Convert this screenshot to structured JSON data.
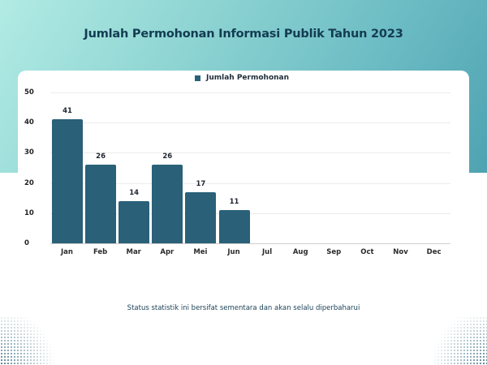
{
  "page": {
    "title": "Jumlah Permohonan Informasi Publik Tahun 2023",
    "footnote": "Status statistik ini bersifat sementara dan akan selalu diperbaharui",
    "colors": {
      "bar": "#2a6078",
      "title": "#133c52",
      "gradient_start": "#b2ebe4",
      "gradient_end": "#4fa3b1"
    }
  },
  "chart_data": {
    "type": "bar",
    "title": "Jumlah Permohonan Informasi Publik Tahun 2023",
    "xlabel": "",
    "ylabel": "",
    "categories": [
      "Jan",
      "Feb",
      "Mar",
      "Apr",
      "Mei",
      "Jun",
      "Jul",
      "Aug",
      "Sep",
      "Oct",
      "Nov",
      "Dec"
    ],
    "series": [
      {
        "name": "Jumlah Permohonan",
        "values": [
          41,
          26,
          14,
          26,
          17,
          11,
          null,
          null,
          null,
          null,
          null,
          null
        ]
      }
    ],
    "data_labels": [
      "41",
      "26",
      "14",
      "26",
      "17",
      "11"
    ],
    "ylim": [
      0,
      50
    ],
    "yticks": [
      "0",
      "10",
      "20",
      "30",
      "40",
      "50"
    ],
    "grid": true,
    "legend": {
      "position": "top",
      "entries": [
        "Jumlah Permohonan"
      ]
    }
  }
}
